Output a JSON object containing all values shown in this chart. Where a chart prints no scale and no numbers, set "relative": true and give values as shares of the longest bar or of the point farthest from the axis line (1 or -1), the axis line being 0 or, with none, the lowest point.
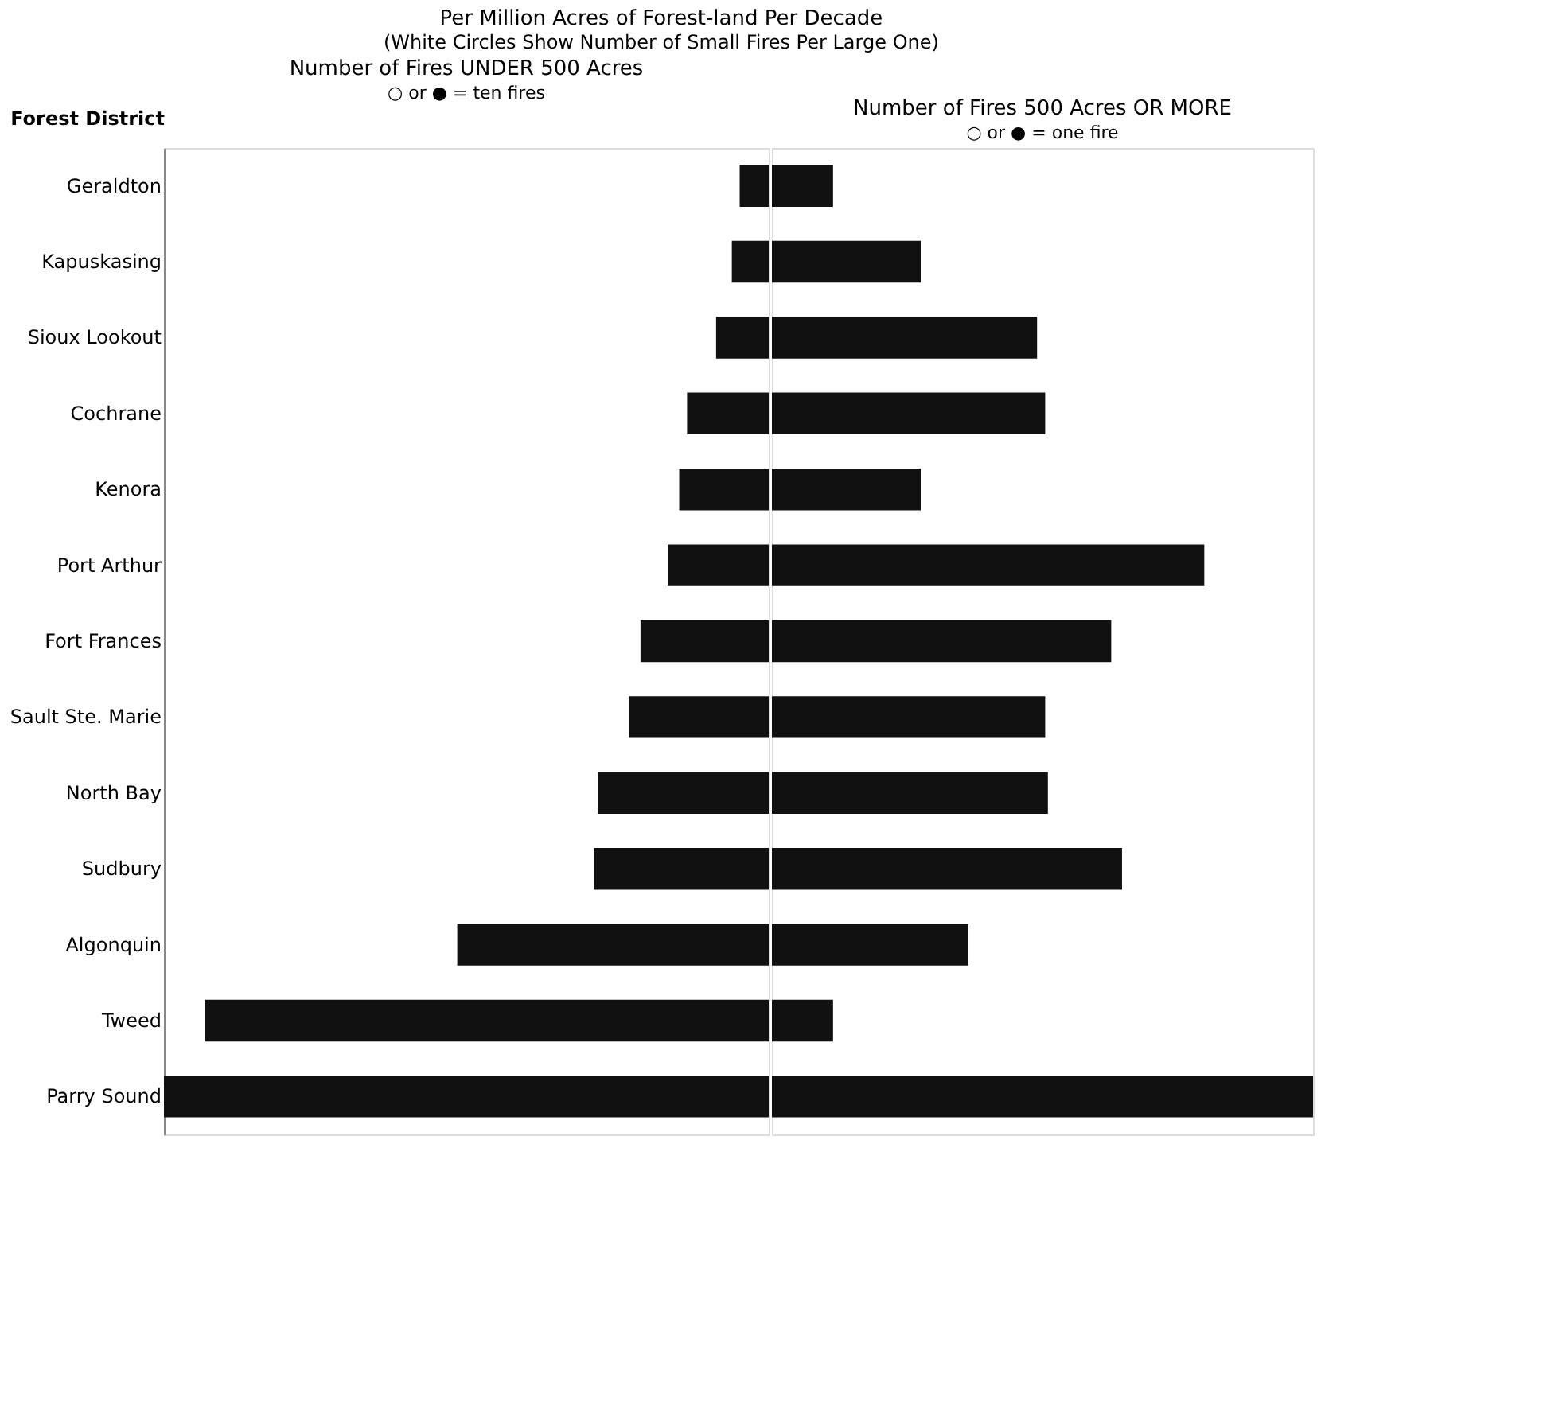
{
  "chart_data": [
    {
      "type": "bar",
      "orientation": "horizontal",
      "relative": true,
      "title": "Number of Fires UNDER 500 Acres",
      "subtitle": "Per Million Acres of Forest-land Per Decade",
      "ylabel": "Forest District",
      "annotations": [
        "(White Circles Show Number of Small Fires Per Large One)",
        "○ or ● = ten fires"
      ],
      "tick_labels": "y",
      "color": "#111111",
      "categories": [
        "Geraldton",
        "Kapuskasing",
        "Sioux Lookout",
        "Cochrane",
        "Kenora",
        "Port Arthur",
        "Fort Frances",
        "Sault Ste. Marie",
        "North Bay",
        "Sudbury",
        "Algonquin",
        "Tweed",
        "Parry Sound"
      ],
      "values": [
        0.048,
        0.061,
        0.087,
        0.135,
        0.148,
        0.167,
        0.212,
        0.231,
        0.282,
        0.289,
        0.515,
        0.932,
        1.0
      ]
    },
    {
      "type": "bar",
      "orientation": "horizontal",
      "relative": true,
      "title": "Number of Fires 500 Acres OR MORE",
      "annotations": [
        "○ or ● = one fire"
      ],
      "tick_labels": false,
      "color": "#111111",
      "values": [
        0.113,
        0.275,
        0.49,
        0.505,
        0.275,
        0.799,
        0.627,
        0.505,
        0.51,
        0.647,
        0.363,
        0.113,
        1.0
      ]
    }
  ]
}
